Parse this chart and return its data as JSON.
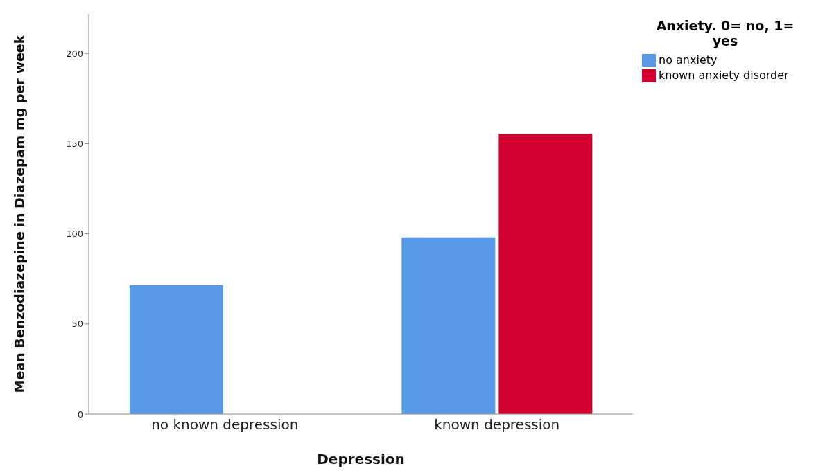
{
  "chart_data": {
    "type": "bar",
    "xlabel": "Depression",
    "ylabel": "Mean Benzodiazepine in Diazepam mg per week",
    "legend_title": "Anxiety. 0= no, 1= yes",
    "categories": [
      "no known depression",
      "known depression"
    ],
    "series": [
      {
        "name": "no anxiety",
        "color": "#5799e5",
        "values": [
          71.5,
          98
        ]
      },
      {
        "name": "known anxiety disorder",
        "color": "#d2002f",
        "values": [
          null,
          155.5
        ]
      }
    ],
    "ylim": [
      0,
      222
    ],
    "yticks": [
      0,
      50,
      100,
      150,
      200
    ],
    "grid": false,
    "legend": "top right"
  }
}
